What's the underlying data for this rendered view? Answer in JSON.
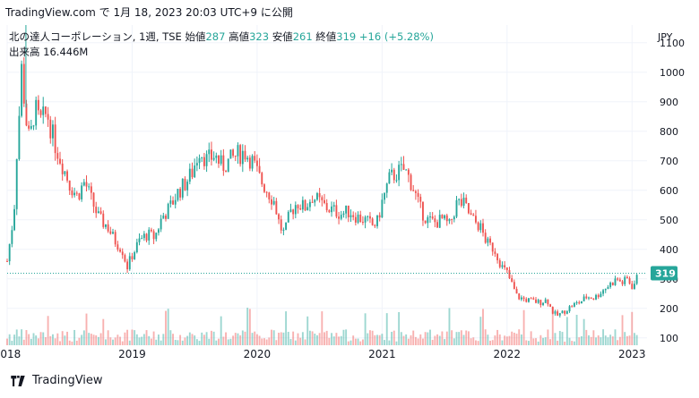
{
  "caption": "TradingView.com で 1月 18, 2023 20:03 UTC+9 に公開",
  "legend": {
    "symbol": "北の達人コーポレーション, 1週, TSE",
    "open_label": "始値",
    "open_value": "287",
    "high_label": "高値",
    "high_value": "323",
    "low_label": "安値",
    "low_value": "261",
    "close_label": "終値",
    "close_value": "319",
    "change": "+16 (+5.28%)",
    "volume_label": "出来高",
    "volume_value": "16.446M"
  },
  "currency": "JPY",
  "last_price_label": "319",
  "footer_brand": "TradingView",
  "colors": {
    "up": "#26a69a",
    "down": "#ef5350",
    "last_price": "#26a69a",
    "grid": "#f0f3fa"
  },
  "chart_data": {
    "type": "candlestick",
    "interval": "1 week",
    "y_axis": {
      "label": "JPY",
      "ticks": [
        100,
        200,
        300,
        400,
        500,
        600,
        700,
        800,
        900,
        1000,
        1100
      ],
      "ylim": [
        75,
        1160
      ]
    },
    "x_axis": {
      "ticks": [
        "2018",
        "2019",
        "2020",
        "2021",
        "2022",
        "2023"
      ],
      "xlim": [
        2018.0,
        2023.12
      ]
    },
    "last_close": 319,
    "price_path": [
      [
        2018.0,
        360
      ],
      [
        2018.04,
        480
      ],
      [
        2018.06,
        560
      ],
      [
        2018.08,
        760
      ],
      [
        2018.1,
        880
      ],
      [
        2018.12,
        1050
      ],
      [
        2018.14,
        870
      ],
      [
        2018.18,
        760
      ],
      [
        2018.22,
        880
      ],
      [
        2018.26,
        830
      ],
      [
        2018.32,
        860
      ],
      [
        2018.38,
        760
      ],
      [
        2018.44,
        690
      ],
      [
        2018.5,
        620
      ],
      [
        2018.56,
        580
      ],
      [
        2018.62,
        630
      ],
      [
        2018.68,
        560
      ],
      [
        2018.74,
        500
      ],
      [
        2018.8,
        480
      ],
      [
        2018.86,
        430
      ],
      [
        2018.92,
        400
      ],
      [
        2018.96,
        340
      ],
      [
        2019.0,
        380
      ],
      [
        2019.06,
        430
      ],
      [
        2019.12,
        450
      ],
      [
        2019.18,
        440
      ],
      [
        2019.24,
        510
      ],
      [
        2019.3,
        540
      ],
      [
        2019.36,
        590
      ],
      [
        2019.42,
        620
      ],
      [
        2019.48,
        660
      ],
      [
        2019.54,
        740
      ],
      [
        2019.6,
        700
      ],
      [
        2019.66,
        720
      ],
      [
        2019.72,
        680
      ],
      [
        2019.78,
        700
      ],
      [
        2019.84,
        720
      ],
      [
        2019.9,
        730
      ],
      [
        2019.96,
        700
      ],
      [
        2020.02,
        640
      ],
      [
        2020.08,
        600
      ],
      [
        2020.14,
        560
      ],
      [
        2020.18,
        480
      ],
      [
        2020.22,
        450
      ],
      [
        2020.26,
        520
      ],
      [
        2020.32,
        560
      ],
      [
        2020.38,
        540
      ],
      [
        2020.44,
        580
      ],
      [
        2020.5,
        560
      ],
      [
        2020.56,
        540
      ],
      [
        2020.62,
        530
      ],
      [
        2020.68,
        520
      ],
      [
        2020.74,
        530
      ],
      [
        2020.8,
        510
      ],
      [
        2020.86,
        500
      ],
      [
        2020.92,
        480
      ],
      [
        2020.96,
        490
      ],
      [
        2021.0,
        560
      ],
      [
        2021.06,
        640
      ],
      [
        2021.12,
        660
      ],
      [
        2021.18,
        670
      ],
      [
        2021.24,
        620
      ],
      [
        2021.3,
        540
      ],
      [
        2021.36,
        500
      ],
      [
        2021.42,
        490
      ],
      [
        2021.48,
        500
      ],
      [
        2021.54,
        480
      ],
      [
        2021.6,
        560
      ],
      [
        2021.66,
        550
      ],
      [
        2021.72,
        500
      ],
      [
        2021.78,
        480
      ],
      [
        2021.84,
        420
      ],
      [
        2021.9,
        400
      ],
      [
        2021.96,
        340
      ],
      [
        2022.0,
        320
      ],
      [
        2022.04,
        280
      ],
      [
        2022.08,
        240
      ],
      [
        2022.14,
        230
      ],
      [
        2022.2,
        225
      ],
      [
        2022.26,
        220
      ],
      [
        2022.32,
        230
      ],
      [
        2022.36,
        190
      ],
      [
        2022.4,
        175
      ],
      [
        2022.46,
        190
      ],
      [
        2022.52,
        210
      ],
      [
        2022.58,
        220
      ],
      [
        2022.64,
        240
      ],
      [
        2022.7,
        235
      ],
      [
        2022.76,
        260
      ],
      [
        2022.82,
        280
      ],
      [
        2022.88,
        300
      ],
      [
        2022.92,
        285
      ],
      [
        2022.96,
        300
      ],
      [
        2023.0,
        275
      ],
      [
        2023.03,
        290
      ],
      [
        2023.05,
        319
      ]
    ],
    "notable_highs": [
      [
        2018.15,
        1160
      ]
    ]
  }
}
